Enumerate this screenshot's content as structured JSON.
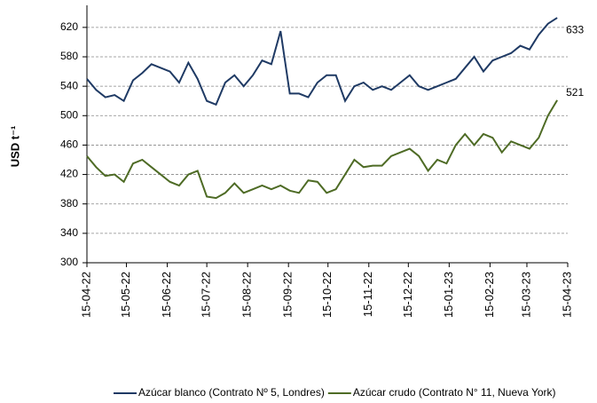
{
  "chart_data": {
    "type": "line",
    "y_label": "USD t⁻¹",
    "x": [
      "15-04-22",
      "22-04-22",
      "29-04-22",
      "06-05-22",
      "13-05-22",
      "20-05-22",
      "27-05-22",
      "03-06-22",
      "10-06-22",
      "17-06-22",
      "24-06-22",
      "01-07-22",
      "08-07-22",
      "15-07-22",
      "22-07-22",
      "29-07-22",
      "05-08-22",
      "12-08-22",
      "19-08-22",
      "26-08-22",
      "02-09-22",
      "09-09-22",
      "16-09-22",
      "23-09-22",
      "30-09-22",
      "07-10-22",
      "14-10-22",
      "21-10-22",
      "28-10-22",
      "04-11-22",
      "11-11-22",
      "18-11-22",
      "25-11-22",
      "02-12-22",
      "09-12-22",
      "16-12-22",
      "23-12-22",
      "30-12-22",
      "06-01-23",
      "13-01-23",
      "20-01-23",
      "27-01-23",
      "03-02-23",
      "10-02-23",
      "17-02-23",
      "24-02-23",
      "03-03-23",
      "10-03-23",
      "17-03-23",
      "24-03-23",
      "31-03-23",
      "07-04-23"
    ],
    "series": [
      {
        "name": "Azúcar blanco (Contrato Nº 5, Londres)",
        "color": "#1f3a64",
        "values": [
          550,
          535,
          525,
          528,
          520,
          548,
          558,
          570,
          565,
          560,
          545,
          572,
          550,
          520,
          515,
          545,
          555,
          540,
          555,
          575,
          570,
          615,
          530,
          530,
          525,
          545,
          555,
          555,
          520,
          540,
          545,
          535,
          540,
          535,
          545,
          555,
          540,
          535,
          540,
          545,
          550,
          565,
          580,
          560,
          575,
          580,
          585,
          595,
          590,
          610,
          625,
          633
        ]
      },
      {
        "name": "Azúcar crudo (Contrato N° 11, Nueva York)",
        "color": "#4e6b25",
        "values": [
          445,
          430,
          418,
          420,
          410,
          435,
          440,
          430,
          420,
          410,
          405,
          420,
          425,
          390,
          388,
          395,
          408,
          395,
          400,
          405,
          400,
          405,
          398,
          395,
          412,
          410,
          395,
          400,
          420,
          440,
          430,
          432,
          432,
          445,
          450,
          455,
          445,
          425,
          440,
          435,
          460,
          475,
          460,
          475,
          470,
          450,
          465,
          460,
          455,
          470,
          500,
          521
        ]
      }
    ],
    "xlim": [
      "15-04-22",
      "15-04-23"
    ],
    "xticks": [
      "15-04-22",
      "15-05-22",
      "15-06-22",
      "15-07-22",
      "15-08-22",
      "15-09-22",
      "15-10-22",
      "15-11-22",
      "15-12-22",
      "15-01-23",
      "15-02-23",
      "15-03-23",
      "15-04-23"
    ],
    "ylim": [
      300,
      650
    ],
    "yticks": [
      300,
      340,
      380,
      420,
      460,
      500,
      540,
      580,
      620
    ],
    "grid": true
  }
}
